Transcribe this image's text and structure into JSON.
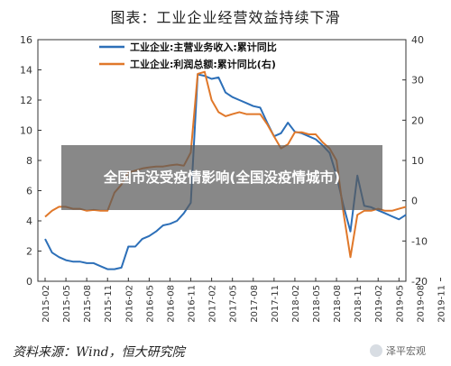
{
  "title": "图表：工业企业经营效益持续下滑",
  "source": "资料来源：Wind，恒大研究院",
  "watermark": "泽平宏观",
  "overlay_text": "全国市没受疫情影响(全国没疫情城市)",
  "colors": {
    "series1": "#2c6fb8",
    "series2": "#e0782a",
    "axis": "#333333"
  },
  "chart_data": {
    "type": "line",
    "x_ticks": [
      "2015-02",
      "2015-05",
      "2015-08",
      "2015-11",
      "2016-02",
      "2016-05",
      "2016-08",
      "2016-11",
      "2017-02",
      "2017-05",
      "2017-08",
      "2017-11",
      "2018-02",
      "2018-05",
      "2018-08",
      "2018-11",
      "2019-02",
      "2019-05",
      "2019-08",
      "2019-11"
    ],
    "y_left": {
      "min": 0,
      "max": 16,
      "ticks": [
        "0",
        "2",
        "4",
        "6",
        "8",
        "10",
        "12",
        "14",
        "16"
      ]
    },
    "y_right": {
      "min": -20,
      "max": 40,
      "ticks": [
        "-20",
        "-10",
        "0",
        "10",
        "20",
        "30",
        "40"
      ]
    },
    "legend_position": "top-center",
    "series": [
      {
        "name": "工业企业:主营业务收入:累计同比",
        "axis": "left",
        "values": [
          2.8,
          1.9,
          1.6,
          1.4,
          1.3,
          1.3,
          1.2,
          1.2,
          1.0,
          0.8,
          0.8,
          0.9,
          2.3,
          2.3,
          2.8,
          3.0,
          3.3,
          3.7,
          3.8,
          4.0,
          4.5,
          5.2,
          13.7,
          13.6,
          13.4,
          13.5,
          12.5,
          12.2,
          12.0,
          11.8,
          11.6,
          11.5,
          10.5,
          9.6,
          9.8,
          10.5,
          9.9,
          9.8,
          9.6,
          9.4,
          9.0,
          8.5,
          7.0,
          5.0,
          3.3,
          7.0,
          5.0,
          4.9,
          4.7,
          4.5,
          4.3,
          4.1,
          4.4
        ]
      },
      {
        "name": "工业企业:利润总额:累计同比(右)",
        "axis": "right",
        "values": [
          -4.0,
          -2.5,
          -1.5,
          -1.5,
          -2.0,
          -2.0,
          -2.5,
          -2.3,
          -2.5,
          -2.5,
          2.0,
          4.0,
          7.0,
          7.5,
          8.0,
          8.3,
          8.5,
          8.5,
          8.8,
          9.0,
          8.7,
          12.0,
          31.5,
          32.0,
          25.0,
          22.0,
          21.0,
          21.5,
          22.0,
          21.5,
          21.5,
          21.5,
          19.0,
          16.0,
          13.0,
          14.0,
          17.0,
          17.0,
          16.5,
          16.5,
          14.5,
          13.0,
          10.0,
          -3.0,
          -14.0,
          -3.5,
          -2.5,
          -2.5,
          -2.0,
          -2.5,
          -2.5,
          -2.0,
          -1.5
        ]
      }
    ]
  }
}
